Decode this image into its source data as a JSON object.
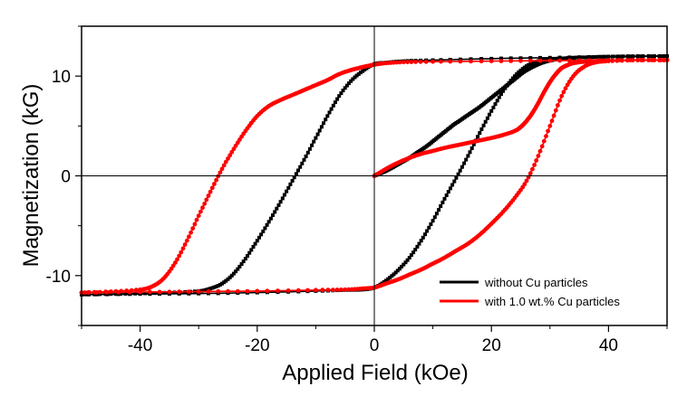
{
  "chart_data": {
    "type": "scatter",
    "title": "",
    "xlabel": "Applied Field (kOe)",
    "ylabel": "Magnetization (kG)",
    "xlim": [
      -50,
      50
    ],
    "ylim": [
      -15,
      15
    ],
    "xticks": [
      -40,
      -20,
      0,
      20,
      40
    ],
    "yticks": [
      -10,
      0,
      10
    ],
    "xtick_labels": [
      "-40",
      "-20",
      "0",
      "20",
      "40"
    ],
    "ytick_labels": [
      "-10",
      "0",
      "10"
    ],
    "zero_lines": true,
    "legend_position": "bottom-right",
    "series": [
      {
        "name": "without Cu particles",
        "color": "#000000",
        "marker": "square",
        "segments": [
          {
            "id": "virgin",
            "x": [
              0,
              1.5,
              3,
              4.5,
              6,
              7.5,
              9,
              10.5,
              12,
              13.5,
              15,
              16.5,
              18,
              19.5,
              21,
              22.5,
              24,
              25.5,
              27,
              28.5,
              30,
              32,
              34,
              37,
              40,
              45,
              50
            ],
            "y": [
              0,
              0.35,
              0.8,
              1.3,
              1.8,
              2.4,
              3.0,
              3.7,
              4.4,
              5.1,
              5.7,
              6.3,
              6.9,
              7.6,
              8.3,
              9.0,
              9.7,
              10.4,
              10.9,
              11.3,
              11.55,
              11.75,
              11.85,
              11.9,
              11.95,
              11.98,
              12.0
            ]
          },
          {
            "id": "descending",
            "x": [
              50,
              40,
              30,
              20,
              10,
              5,
              2,
              0,
              -2,
              -4,
              -6,
              -8,
              -10,
              -12,
              -14,
              -16,
              -18,
              -20,
              -22,
              -24,
              -26,
              -28,
              -30,
              -35,
              -40,
              -45,
              -50
            ],
            "y": [
              12.0,
              11.95,
              11.85,
              11.75,
              11.6,
              11.5,
              11.35,
              11.2,
              10.5,
              9.5,
              8.0,
              6.0,
              3.8,
              1.6,
              -0.5,
              -2.6,
              -4.6,
              -6.5,
              -8.3,
              -9.8,
              -10.8,
              -11.3,
              -11.55,
              -11.7,
              -11.8,
              -11.85,
              -11.9
            ]
          },
          {
            "id": "ascending",
            "x": [
              -50,
              -40,
              -30,
              -20,
              -10,
              -5,
              -2,
              0,
              2,
              4,
              6,
              8,
              10,
              12,
              14,
              16,
              18,
              20,
              22,
              24,
              26,
              28,
              30,
              35,
              40,
              45,
              50
            ],
            "y": [
              -11.9,
              -11.85,
              -11.8,
              -11.7,
              -11.55,
              -11.45,
              -11.4,
              -11.2,
              -10.5,
              -9.5,
              -8.2,
              -6.5,
              -4.5,
              -2.3,
              -0.2,
              2.0,
              4.3,
              6.5,
              8.5,
              10.0,
              11.0,
              11.5,
              11.7,
              11.85,
              11.95,
              12.0,
              12.0
            ]
          }
        ]
      },
      {
        "name": "with 1.0 wt.% Cu particles",
        "color": "#ff0000",
        "marker": "circle",
        "segments": [
          {
            "id": "virgin",
            "x": [
              0,
              2,
              4,
              6,
              8,
              10,
              12,
              14,
              16,
              18,
              20,
              22,
              24,
              25,
              26,
              27,
              28,
              29,
              30,
              31,
              32,
              33,
              34,
              36,
              38,
              40,
              45,
              50
            ],
            "y": [
              0,
              0.7,
              1.3,
              1.8,
              2.2,
              2.5,
              2.8,
              3.05,
              3.3,
              3.55,
              3.8,
              4.1,
              4.5,
              4.9,
              5.5,
              6.3,
              7.3,
              8.4,
              9.4,
              10.2,
              10.8,
              11.1,
              11.3,
              11.45,
              11.5,
              11.55,
              11.6,
              11.6
            ]
          },
          {
            "id": "descending",
            "x": [
              50,
              40,
              30,
              20,
              10,
              5,
              2,
              0,
              -2,
              -4,
              -6,
              -8,
              -10,
              -12,
              -14,
              -16,
              -18,
              -20,
              -22,
              -24,
              -26,
              -28,
              -30,
              -32,
              -34,
              -36,
              -38,
              -40,
              -45,
              -50
            ],
            "y": [
              11.6,
              11.6,
              11.55,
              11.5,
              11.45,
              11.4,
              11.3,
              11.15,
              10.9,
              10.6,
              10.2,
              9.6,
              9.1,
              8.6,
              8.1,
              7.6,
              7.0,
              6.0,
              4.5,
              2.7,
              0.7,
              -1.6,
              -4.0,
              -6.5,
              -8.7,
              -10.3,
              -11.1,
              -11.4,
              -11.6,
              -11.7
            ]
          },
          {
            "id": "ascending",
            "x": [
              -50,
              -40,
              -30,
              -20,
              -10,
              -5,
              -2,
              0,
              2,
              4,
              6,
              8,
              10,
              12,
              14,
              16,
              18,
              20,
              22,
              24,
              26,
              28,
              30,
              32,
              34,
              36,
              38,
              40,
              45,
              50
            ],
            "y": [
              -11.7,
              -11.65,
              -11.6,
              -11.55,
              -11.45,
              -11.4,
              -11.3,
              -11.2,
              -10.8,
              -10.4,
              -9.9,
              -9.4,
              -8.8,
              -8.2,
              -7.5,
              -6.8,
              -5.9,
              -4.8,
              -3.6,
              -2.2,
              -0.5,
              2.0,
              5.0,
              8.0,
              10.0,
              11.0,
              11.4,
              11.5,
              11.6,
              11.6
            ]
          }
        ]
      }
    ]
  }
}
